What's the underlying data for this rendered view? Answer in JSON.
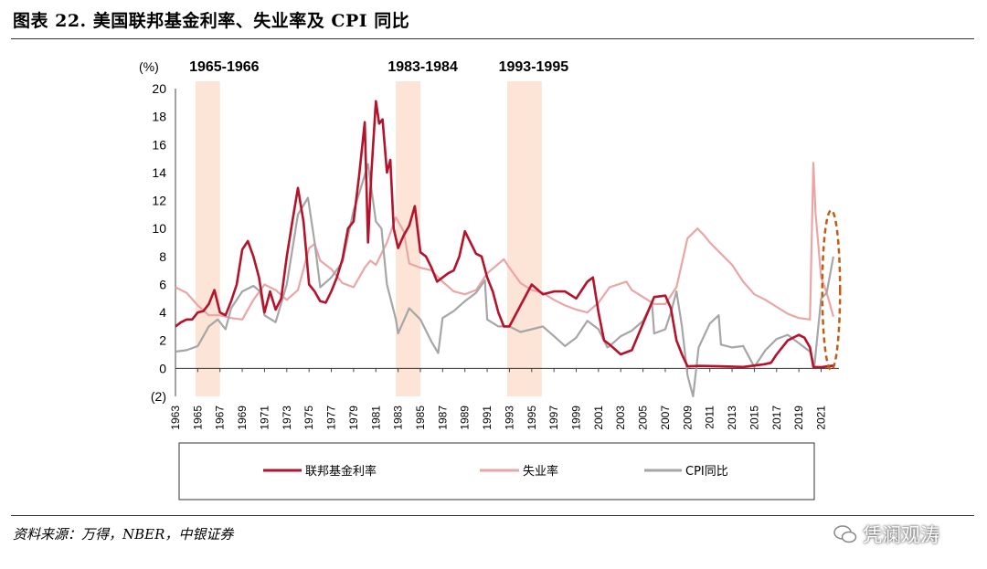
{
  "figure": {
    "title": "图表 22. 美国联邦基金利率、失业率及 CPI 同比",
    "source": "资料来源：万得，NBER，中银证券",
    "watermark": "凭澜观涛"
  },
  "colors": {
    "fed_rate": "#b5122b",
    "unemployment": "#eba5a5",
    "cpi": "#a6a6a6",
    "shade": "#fce4d6",
    "ellipse": "#c55a11"
  },
  "chart_data": {
    "type": "line",
    "y_unit": "(%)",
    "ylim": [
      -2,
      20
    ],
    "yticks": [
      "(2)",
      "0",
      "2",
      "4",
      "6",
      "8",
      "10",
      "12",
      "14",
      "16",
      "18",
      "20"
    ],
    "xlim": [
      1963,
      2022.6
    ],
    "xticks": [
      "1963",
      "1965",
      "1967",
      "1969",
      "1971",
      "1973",
      "1975",
      "1977",
      "1979",
      "1981",
      "1983",
      "1985",
      "1987",
      "1989",
      "1991",
      "1993",
      "1995",
      "1997",
      "1999",
      "2001",
      "2003",
      "2005",
      "2007",
      "2009",
      "2011",
      "2013",
      "2015",
      "2017",
      "2019",
      "2021"
    ],
    "shaded_periods": [
      {
        "label": "1965-1966",
        "start": 1964.8,
        "end": 1967.0
      },
      {
        "label": "1983-1984",
        "start": 1982.8,
        "end": 1985.0
      },
      {
        "label": "1993-1995",
        "start": 1992.8,
        "end": 1995.9
      }
    ],
    "highlight_ellipse": {
      "x_center": 2021.9,
      "y_center": 5.6,
      "x_half": 0.8,
      "y_half": 5.7
    },
    "series": [
      {
        "name": "联邦基金利率",
        "key": "fed_rate",
        "x": [
          1963,
          1963.5,
          1964,
          1964.5,
          1965,
          1965.5,
          1966,
          1966.5,
          1967,
          1967.5,
          1968,
          1968.5,
          1969,
          1969.5,
          1970,
          1970.5,
          1971,
          1971.5,
          1972,
          1972.5,
          1973,
          1973.5,
          1974,
          1974.5,
          1975,
          1975.5,
          1976,
          1976.5,
          1977,
          1977.5,
          1978,
          1978.5,
          1979,
          1979.5,
          1980,
          1980.3,
          1980.6,
          1981,
          1981.3,
          1981.6,
          1982,
          1982.3,
          1982.6,
          1983,
          1983.5,
          1984,
          1984.5,
          1985,
          1985.5,
          1986,
          1986.5,
          1987,
          1987.5,
          1988,
          1988.5,
          1989,
          1989.5,
          1990,
          1990.5,
          1991,
          1991.5,
          1992,
          1992.5,
          1993,
          1994,
          1995,
          1996,
          1997,
          1998,
          1999,
          2000,
          2000.5,
          2001,
          2001.5,
          2002,
          2003,
          2004,
          2005,
          2006,
          2007,
          2007.5,
          2008,
          2008.5,
          2009,
          2010,
          2012,
          2014,
          2015.9,
          2016.5,
          2017,
          2018,
          2019,
          2019.5,
          2020,
          2020.3,
          2021,
          2022.1
        ],
        "y": [
          3.0,
          3.3,
          3.5,
          3.5,
          4.0,
          4.1,
          4.6,
          5.6,
          4.0,
          3.8,
          4.8,
          6.0,
          8.5,
          9.1,
          8.0,
          6.5,
          4.0,
          5.5,
          4.2,
          5.0,
          8.0,
          10.5,
          12.9,
          10.5,
          6.0,
          5.5,
          4.8,
          4.7,
          5.5,
          6.5,
          7.8,
          10.0,
          10.5,
          13.8,
          17.6,
          9.0,
          14.0,
          19.1,
          17.5,
          17.8,
          14.0,
          14.9,
          10.0,
          8.6,
          9.5,
          10.2,
          11.6,
          8.3,
          8.0,
          7.2,
          6.2,
          6.5,
          6.8,
          7.0,
          8.0,
          9.8,
          9.0,
          8.2,
          8.0,
          6.5,
          5.5,
          4.0,
          3.0,
          3.0,
          4.5,
          6.0,
          5.3,
          5.5,
          5.5,
          5.0,
          6.2,
          6.5,
          4.0,
          2.0,
          1.7,
          1.0,
          1.3,
          3.2,
          5.1,
          5.2,
          4.3,
          2.0,
          1.0,
          0.15,
          0.18,
          0.15,
          0.1,
          0.3,
          0.4,
          1.0,
          2.0,
          2.4,
          2.2,
          1.5,
          0.1,
          0.08,
          0.2
        ]
      },
      {
        "name": "失业率",
        "key": "unemployment",
        "x": [
          1963,
          1964,
          1965,
          1966,
          1967,
          1968,
          1969,
          1970,
          1971,
          1972,
          1973,
          1974,
          1975,
          1975.5,
          1976,
          1977,
          1978,
          1979,
          1980,
          1980.5,
          1981,
          1982,
          1982.8,
          1983.5,
          1984,
          1985,
          1986,
          1987,
          1988,
          1989,
          1990,
          1991,
          1992.5,
          1993,
          1994,
          1995,
          1996,
          1997,
          1998,
          1999,
          2000,
          2001,
          2002,
          2003.5,
          2004,
          2005,
          2006,
          2007,
          2008,
          2009,
          2009.9,
          2010.5,
          2011,
          2012,
          2013,
          2014,
          2015,
          2016,
          2017,
          2018,
          2019,
          2020,
          2020.3,
          2020.5,
          2021,
          2021.5,
          2022.1
        ],
        "y": [
          5.8,
          5.4,
          4.5,
          3.8,
          3.8,
          3.6,
          3.5,
          4.9,
          6.0,
          5.6,
          4.9,
          5.6,
          8.6,
          8.9,
          7.7,
          7.1,
          6.1,
          5.8,
          7.2,
          7.7,
          7.4,
          9.0,
          10.8,
          9.8,
          7.5,
          7.2,
          7.0,
          6.2,
          5.5,
          5.3,
          5.6,
          6.8,
          7.8,
          7.2,
          6.1,
          5.6,
          5.4,
          4.9,
          4.5,
          4.2,
          4.0,
          4.7,
          5.8,
          6.2,
          5.6,
          5.1,
          4.6,
          4.6,
          5.8,
          9.3,
          10.0,
          9.5,
          9.0,
          8.2,
          7.4,
          6.2,
          5.3,
          4.9,
          4.4,
          3.9,
          3.6,
          3.5,
          14.7,
          11.1,
          6.5,
          5.4,
          3.7
        ]
      },
      {
        "name": "CPI同比",
        "key": "cpi",
        "x": [
          1963,
          1964,
          1965,
          1966,
          1966.8,
          1967.5,
          1968,
          1969,
          1970,
          1970.6,
          1971,
          1972,
          1973,
          1973.5,
          1974,
          1974.9,
          1975.5,
          1976,
          1977,
          1978,
          1979,
          1979.5,
          1980.3,
          1981,
          1981.5,
          1982,
          1982.8,
          1983,
          1984,
          1985,
          1986,
          1986.6,
          1987,
          1988,
          1989,
          1990,
          1990.8,
          1991,
          1992,
          1993,
          1994,
          1995,
          1996,
          1997,
          1998,
          1999,
          2000,
          2001,
          2001.8,
          2002,
          2003,
          2004,
          2005,
          2005.8,
          2006,
          2007,
          2007.5,
          2008,
          2008.5,
          2009,
          2009.5,
          2010,
          2011,
          2011.8,
          2012,
          2013,
          2014,
          2015,
          2016,
          2017,
          2018,
          2019,
          2020,
          2020.4,
          2021,
          2021.5,
          2022.1
        ],
        "y": [
          1.2,
          1.3,
          1.6,
          3.0,
          3.5,
          2.8,
          4.3,
          5.5,
          5.9,
          5.5,
          3.8,
          3.3,
          6.0,
          8.5,
          11.0,
          12.2,
          9.0,
          5.8,
          6.5,
          7.6,
          11.3,
          12.5,
          14.6,
          10.5,
          10.0,
          6.0,
          3.5,
          2.5,
          4.3,
          3.5,
          1.9,
          1.1,
          3.6,
          4.1,
          4.8,
          5.4,
          6.3,
          3.5,
          3.0,
          3.0,
          2.6,
          2.8,
          3.0,
          2.3,
          1.6,
          2.2,
          3.4,
          2.8,
          1.5,
          1.6,
          2.3,
          2.7,
          3.4,
          4.7,
          2.5,
          2.8,
          4.0,
          5.5,
          3.0,
          -0.5,
          -2.0,
          1.5,
          3.2,
          3.8,
          1.7,
          1.5,
          1.6,
          0.1,
          1.3,
          2.1,
          2.4,
          1.8,
          1.2,
          0.2,
          5.0,
          5.4,
          8.0
        ]
      }
    ]
  }
}
